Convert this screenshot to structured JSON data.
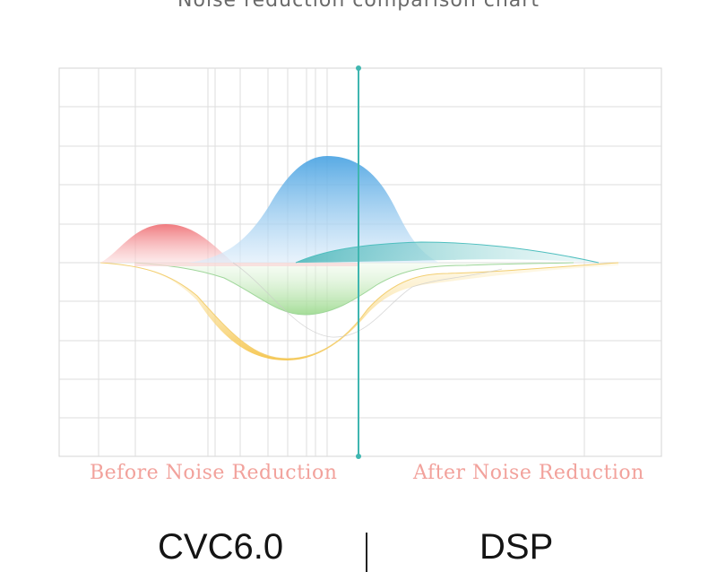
{
  "header": {
    "caption": "Noise reduction comparison chart"
  },
  "labels": {
    "before": "Before Noise Reduction",
    "after": "After Noise Reduction"
  },
  "titles": {
    "left": "CVC6.0",
    "right": "DSP"
  },
  "colors": {
    "red": "#ef6f74",
    "blue": "#4aa3e2",
    "green": "#9bd98c",
    "yellow": "#f5c242",
    "teal": "#3fb2b4",
    "divider": "#3fb6b0",
    "label": "#f2a29c"
  }
}
